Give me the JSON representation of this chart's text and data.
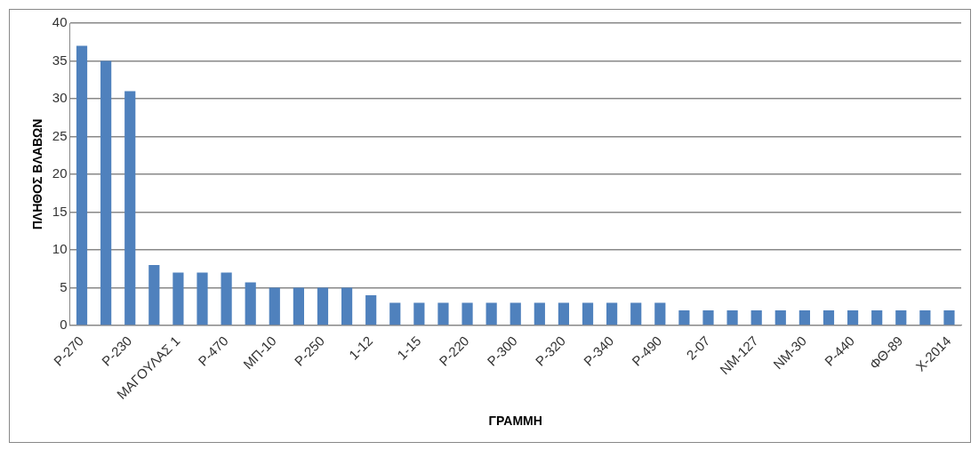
{
  "chart_data": {
    "type": "bar",
    "xlabel": "ΓΡΑΜΜΗ",
    "ylabel": "ΠΛΗΘΟΣ ΒΛΑΒΩΝ",
    "categories": [
      "P-270",
      null,
      "P-230",
      null,
      "ΜΑΓΟΥΛΑΣ 1",
      null,
      "P-470",
      null,
      "ΜΠ-10",
      null,
      "P-250",
      null,
      "1-12",
      null,
      "1-15",
      null,
      "P-220",
      null,
      "P-300",
      null,
      "P-320",
      null,
      "P-340",
      null,
      "P-490",
      null,
      "2-07",
      null,
      "ΝΜ-127",
      null,
      "ΝΜ-30",
      null,
      "P-440",
      null,
      "ΦΘ-89",
      null,
      "X-2014"
    ],
    "values": [
      37,
      35,
      31,
      8,
      7,
      7,
      7,
      5.7,
      5,
      5,
      5,
      5,
      4,
      3,
      3,
      3,
      3,
      3,
      3,
      3,
      3,
      3,
      3,
      3,
      3,
      2,
      2,
      2,
      2,
      2,
      2,
      2,
      2,
      2,
      2,
      2,
      2
    ],
    "color": "#4f81bd",
    "ylim": [
      0,
      40
    ],
    "yticks": [
      0,
      5,
      10,
      15,
      20,
      25,
      30,
      35,
      40
    ],
    "grid": "y",
    "legend": false
  }
}
